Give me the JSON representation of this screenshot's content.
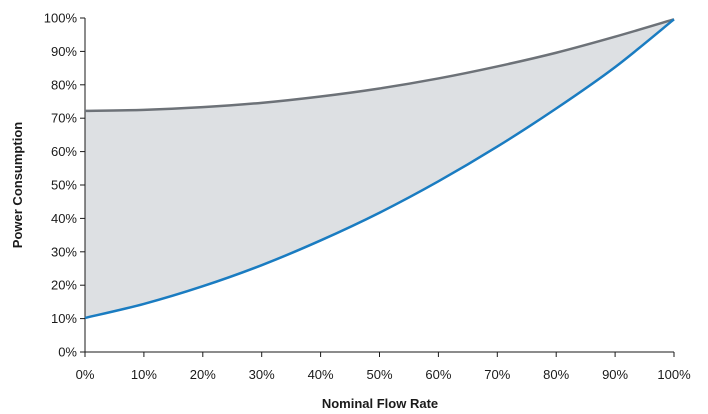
{
  "chart_data": {
    "type": "area",
    "xlabel": "Nominal Flow Rate",
    "ylabel": "Power Consumption",
    "xlim": [
      0,
      100
    ],
    "ylim": [
      0,
      100
    ],
    "x_ticks": [
      "0%",
      "10%",
      "20%",
      "30%",
      "40%",
      "50%",
      "60%",
      "70%",
      "80%",
      "90%",
      "100%"
    ],
    "y_ticks": [
      "0%",
      "10%",
      "20%",
      "30%",
      "40%",
      "50%",
      "60%",
      "70%",
      "80%",
      "90%",
      "100%"
    ],
    "grid": false,
    "x": [
      0,
      10,
      20,
      30,
      40,
      50,
      60,
      70,
      80,
      90,
      100
    ],
    "series": [
      {
        "values": [
          72.2,
          72.5,
          73.3,
          74.6,
          76.5,
          78.9,
          81.9,
          85.5,
          89.6,
          94.4,
          99.6
        ],
        "color": "#6d7278"
      },
      {
        "values": [
          10.2,
          14.4,
          19.7,
          26.0,
          33.4,
          41.7,
          51.1,
          61.5,
          72.9,
          85.3,
          99.6
        ],
        "color": "#1a7cc1"
      }
    ],
    "fill_color": "#dde0e3"
  }
}
